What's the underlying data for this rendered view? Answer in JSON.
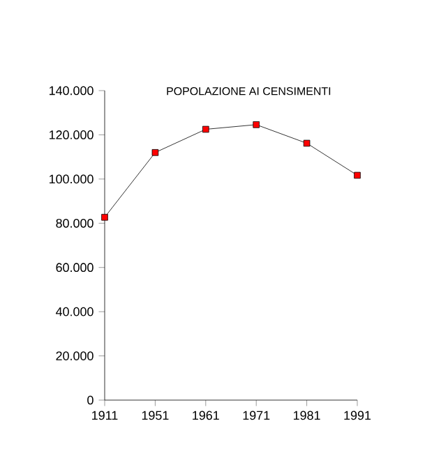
{
  "chart_data": {
    "type": "line",
    "title": "POPOLAZIONE AI CENSIMENTI",
    "categories": [
      "1911",
      "1951",
      "1961",
      "1971",
      "1981",
      "1991"
    ],
    "series": [
      {
        "color": "#ff0000",
        "values": [
          82700,
          112000,
          122500,
          124600,
          116200,
          101700
        ]
      }
    ],
    "ylim": [
      0,
      140000
    ],
    "yticks": [
      {
        "value": 0,
        "label": "0"
      },
      {
        "value": 20000,
        "label": "20.000"
      },
      {
        "value": 40000,
        "label": "40.000"
      },
      {
        "value": 60000,
        "label": "60.000"
      },
      {
        "value": 80000,
        "label": "80.000"
      },
      {
        "value": 100000,
        "label": "100.000"
      },
      {
        "value": 120000,
        "label": "120.000"
      },
      {
        "value": 140000,
        "label": "140.000"
      }
    ],
    "grid": false,
    "marker": "square",
    "line_style": "solid"
  }
}
